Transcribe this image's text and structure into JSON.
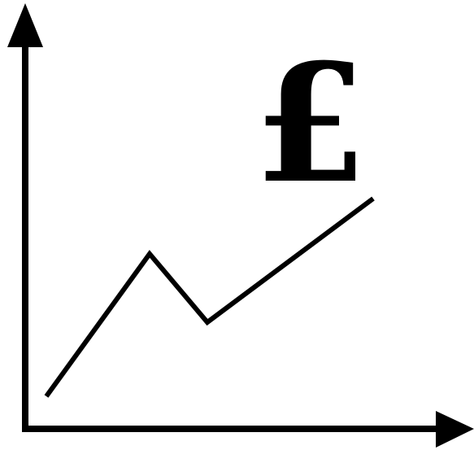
{
  "icon": {
    "symbol": "£"
  }
}
